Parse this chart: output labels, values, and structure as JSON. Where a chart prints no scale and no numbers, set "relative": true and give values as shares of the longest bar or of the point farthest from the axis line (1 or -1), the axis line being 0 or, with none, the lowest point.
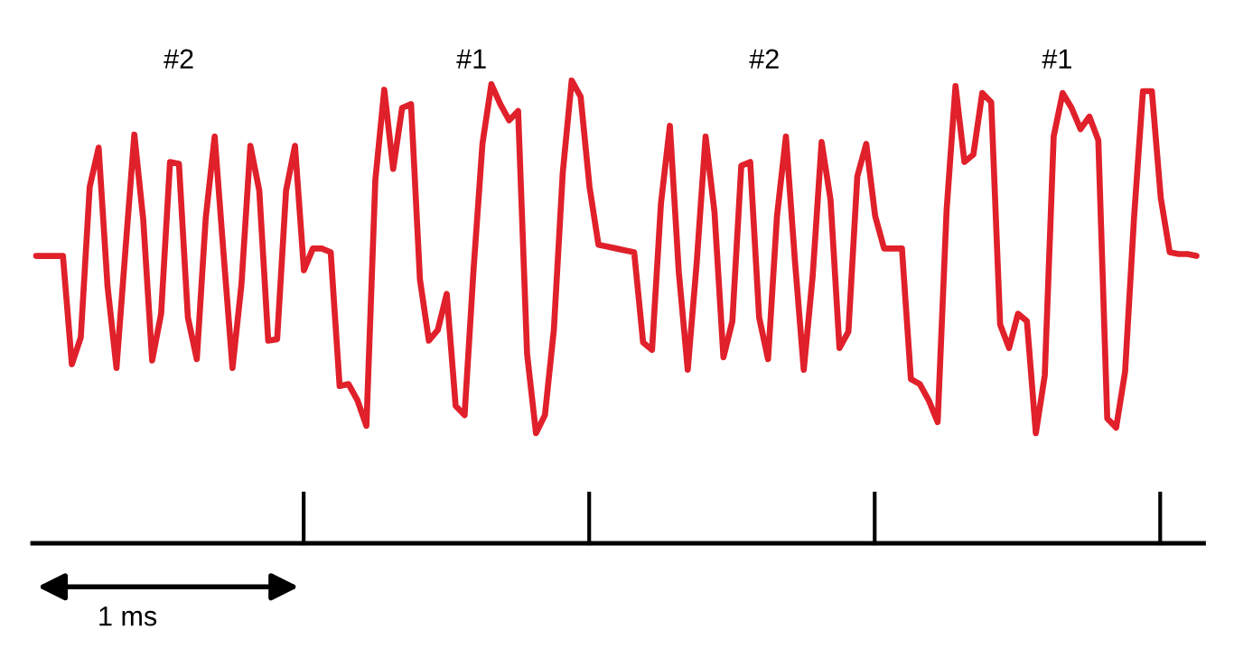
{
  "chart_data": {
    "type": "line",
    "relative": true,
    "categories": [
      null,
      null,
      null,
      null,
      null,
      null,
      null,
      null,
      null,
      null,
      null,
      null,
      null,
      null,
      null,
      null,
      null,
      null,
      null,
      null,
      null,
      null,
      null,
      null,
      null,
      null,
      null,
      null,
      null,
      null,
      null,
      null,
      null,
      null,
      null,
      null,
      null,
      null,
      null,
      null,
      null,
      null,
      null,
      null,
      null,
      null,
      null,
      null,
      null,
      null,
      null,
      null,
      null,
      null,
      null,
      null,
      null,
      null,
      null,
      null,
      null,
      null,
      null,
      null,
      null,
      null,
      null,
      null,
      null,
      null,
      null,
      null,
      null,
      null,
      null,
      null,
      null,
      null,
      null,
      null,
      null,
      null,
      null,
      null,
      null,
      null,
      null,
      null,
      null,
      null,
      null,
      null,
      null,
      null,
      null,
      null,
      null,
      null,
      null,
      null,
      null,
      null,
      null,
      null,
      null,
      null,
      null,
      null,
      null,
      null,
      null,
      null,
      null,
      null,
      null,
      null,
      null,
      null,
      null,
      null,
      null,
      null,
      null,
      null,
      null,
      null,
      null,
      null,
      null,
      null,
      null
    ],
    "annotations": [
      "#2",
      "#1",
      "#2",
      "#1",
      "1 ms"
    ],
    "series": [
      {
        "color": "#e0202a",
        "values": [
          0.621,
          0.621,
          0.621,
          0.621,
          0.387,
          0.445,
          0.77,
          0.855,
          0.555,
          0.379,
          0.633,
          0.883,
          0.699,
          0.395,
          0.496,
          0.824,
          0.82,
          0.488,
          0.398,
          0.703,
          0.879,
          0.625,
          0.379,
          0.559,
          0.859,
          0.762,
          0.438,
          0.441,
          0.762,
          0.859,
          0.59,
          0.637,
          0.637,
          0.629,
          0.34,
          0.344,
          0.309,
          0.254,
          0.785,
          0.98,
          0.809,
          0.941,
          0.949,
          0.57,
          0.438,
          0.461,
          0.539,
          0.297,
          0.277,
          0.59,
          0.863,
          0.992,
          0.949,
          0.914,
          0.934,
          0.41,
          0.238,
          0.277,
          0.461,
          0.801,
          1.0,
          0.965,
          0.77,
          0.645,
          0.641,
          0.637,
          0.633,
          0.629,
          0.434,
          0.418,
          0.734,
          0.902,
          0.586,
          0.375,
          0.605,
          0.879,
          0.715,
          0.402,
          0.48,
          0.816,
          0.824,
          0.488,
          0.398,
          0.707,
          0.879,
          0.613,
          0.375,
          0.578,
          0.867,
          0.742,
          0.422,
          0.457,
          0.793,
          0.863,
          0.707,
          0.637,
          0.637,
          0.637,
          0.355,
          0.344,
          0.309,
          0.262,
          0.719,
          0.988,
          0.824,
          0.84,
          0.973,
          0.953,
          0.473,
          0.422,
          0.496,
          0.48,
          0.238,
          0.363,
          0.879,
          0.973,
          0.941,
          0.895,
          0.922,
          0.871,
          0.27,
          0.25,
          0.371,
          0.703,
          0.977,
          0.977,
          0.746,
          0.629,
          0.625,
          0.625,
          0.621
        ]
      }
    ]
  }
}
